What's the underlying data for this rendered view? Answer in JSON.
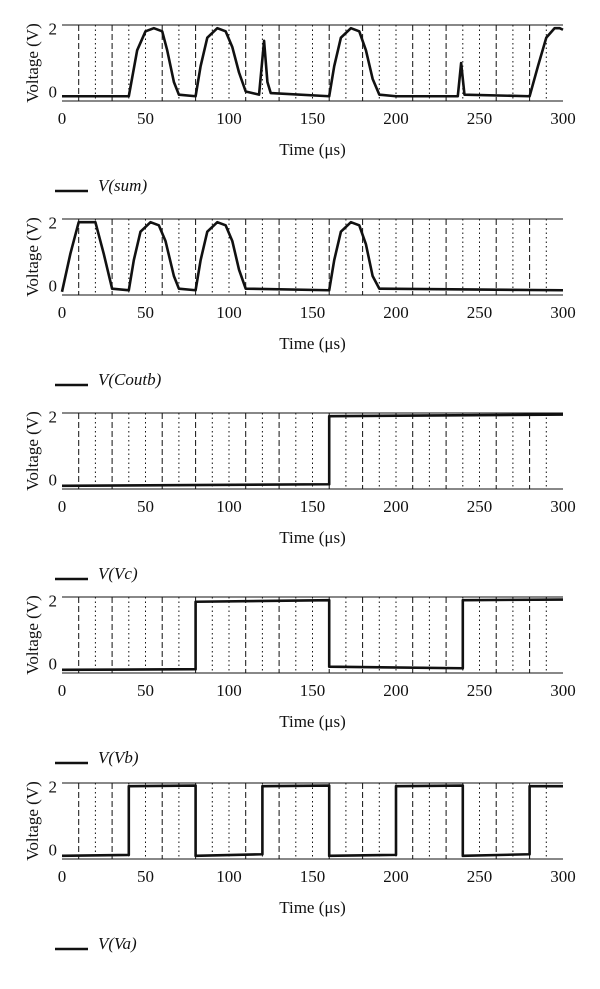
{
  "chart_data": [
    {
      "type": "line",
      "xlabel": "Time (μs)",
      "ylabel": "Voltage (V)",
      "xlim": [
        0,
        300
      ],
      "xticks": [
        0,
        50,
        100,
        150,
        200,
        250,
        300
      ],
      "ylim": [
        -0.1,
        2.3
      ],
      "yticks": [
        0,
        2
      ],
      "grid": true,
      "x": [
        0,
        40,
        45,
        50,
        55,
        60,
        63,
        67,
        70,
        80,
        83,
        87,
        93,
        98,
        102,
        106,
        110,
        118,
        121,
        123,
        125,
        160,
        163,
        167,
        173,
        178,
        182,
        186,
        190,
        200,
        237,
        239,
        241,
        280,
        285,
        290,
        295,
        298,
        300
      ],
      "series": [
        {
          "name": "V(sum)",
          "color": "#111111",
          "values": [
            0.05,
            0.05,
            1.5,
            2.1,
            2.2,
            2.1,
            1.5,
            0.5,
            0.1,
            0.05,
            1.0,
            1.9,
            2.2,
            2.1,
            1.6,
            0.8,
            0.2,
            0.1,
            1.8,
            0.5,
            0.15,
            0.05,
            1.0,
            1.9,
            2.2,
            2.1,
            1.5,
            0.6,
            0.1,
            0.05,
            0.05,
            1.1,
            0.1,
            0.05,
            1.0,
            1.9,
            2.2,
            2.2,
            2.15
          ]
        }
      ]
    },
    {
      "type": "line",
      "xlabel": "Time (μs)",
      "ylabel": "Voltage (V)",
      "xlim": [
        0,
        300
      ],
      "xticks": [
        0,
        50,
        100,
        150,
        200,
        250,
        300
      ],
      "ylim": [
        -0.1,
        2.3
      ],
      "yticks": [
        0,
        2
      ],
      "grid": true,
      "x": [
        0,
        5,
        10,
        20,
        25,
        30,
        40,
        43,
        47,
        53,
        58,
        62,
        67,
        70,
        80,
        83,
        87,
        93,
        98,
        102,
        106,
        110,
        160,
        163,
        167,
        173,
        178,
        182,
        186,
        190,
        300
      ],
      "series": [
        {
          "name": "V(Coutb)",
          "color": "#111111",
          "values": [
            0,
            1.2,
            2.2,
            2.2,
            1.2,
            0.1,
            0.05,
            1.0,
            1.9,
            2.2,
            2.1,
            1.6,
            0.5,
            0.1,
            0.05,
            1.0,
            1.9,
            2.2,
            2.1,
            1.6,
            0.7,
            0.1,
            0.05,
            1.0,
            1.9,
            2.2,
            2.1,
            1.5,
            0.5,
            0.1,
            0.05
          ]
        }
      ]
    },
    {
      "type": "line",
      "xlabel": "Time (μs)",
      "ylabel": "Voltage (V)",
      "xlim": [
        0,
        300
      ],
      "xticks": [
        0,
        50,
        100,
        150,
        200,
        250,
        300
      ],
      "ylim": [
        -0.1,
        2.3
      ],
      "yticks": [
        0,
        2
      ],
      "grid": true,
      "x": [
        0,
        160,
        160,
        300
      ],
      "series": [
        {
          "name": "V(Vc)",
          "color": "#111111",
          "values": [
            0,
            0.05,
            2.2,
            2.25
          ]
        }
      ]
    },
    {
      "type": "line",
      "xlabel": "Time (μs)",
      "ylabel": "Voltage (V)",
      "xlim": [
        0,
        300
      ],
      "xticks": [
        0,
        50,
        100,
        150,
        200,
        250,
        300
      ],
      "ylim": [
        -0.1,
        2.3
      ],
      "yticks": [
        0,
        2
      ],
      "grid": true,
      "x": [
        0,
        80,
        80,
        160,
        160,
        240,
        240,
        300
      ],
      "series": [
        {
          "name": "V(Vb)",
          "color": "#111111",
          "values": [
            0,
            0.02,
            2.15,
            2.2,
            0.1,
            0.05,
            2.2,
            2.22
          ]
        }
      ]
    },
    {
      "type": "line",
      "xlabel": "Time (μs)",
      "ylabel": "Voltage (V)",
      "xlim": [
        0,
        300
      ],
      "xticks": [
        0,
        50,
        100,
        150,
        200,
        250,
        300
      ],
      "ylim": [
        -0.1,
        2.3
      ],
      "yticks": [
        0,
        2
      ],
      "grid": true,
      "x": [
        0,
        40,
        40,
        80,
        80,
        120,
        120,
        160,
        160,
        200,
        200,
        240,
        240,
        280,
        280,
        300
      ],
      "series": [
        {
          "name": "V(Va)",
          "color": "#111111",
          "values": [
            0,
            0.03,
            2.2,
            2.22,
            0,
            0.05,
            2.2,
            2.22,
            0,
            0.03,
            2.2,
            2.22,
            0,
            0.05,
            2.2,
            2.2
          ]
        }
      ]
    }
  ]
}
